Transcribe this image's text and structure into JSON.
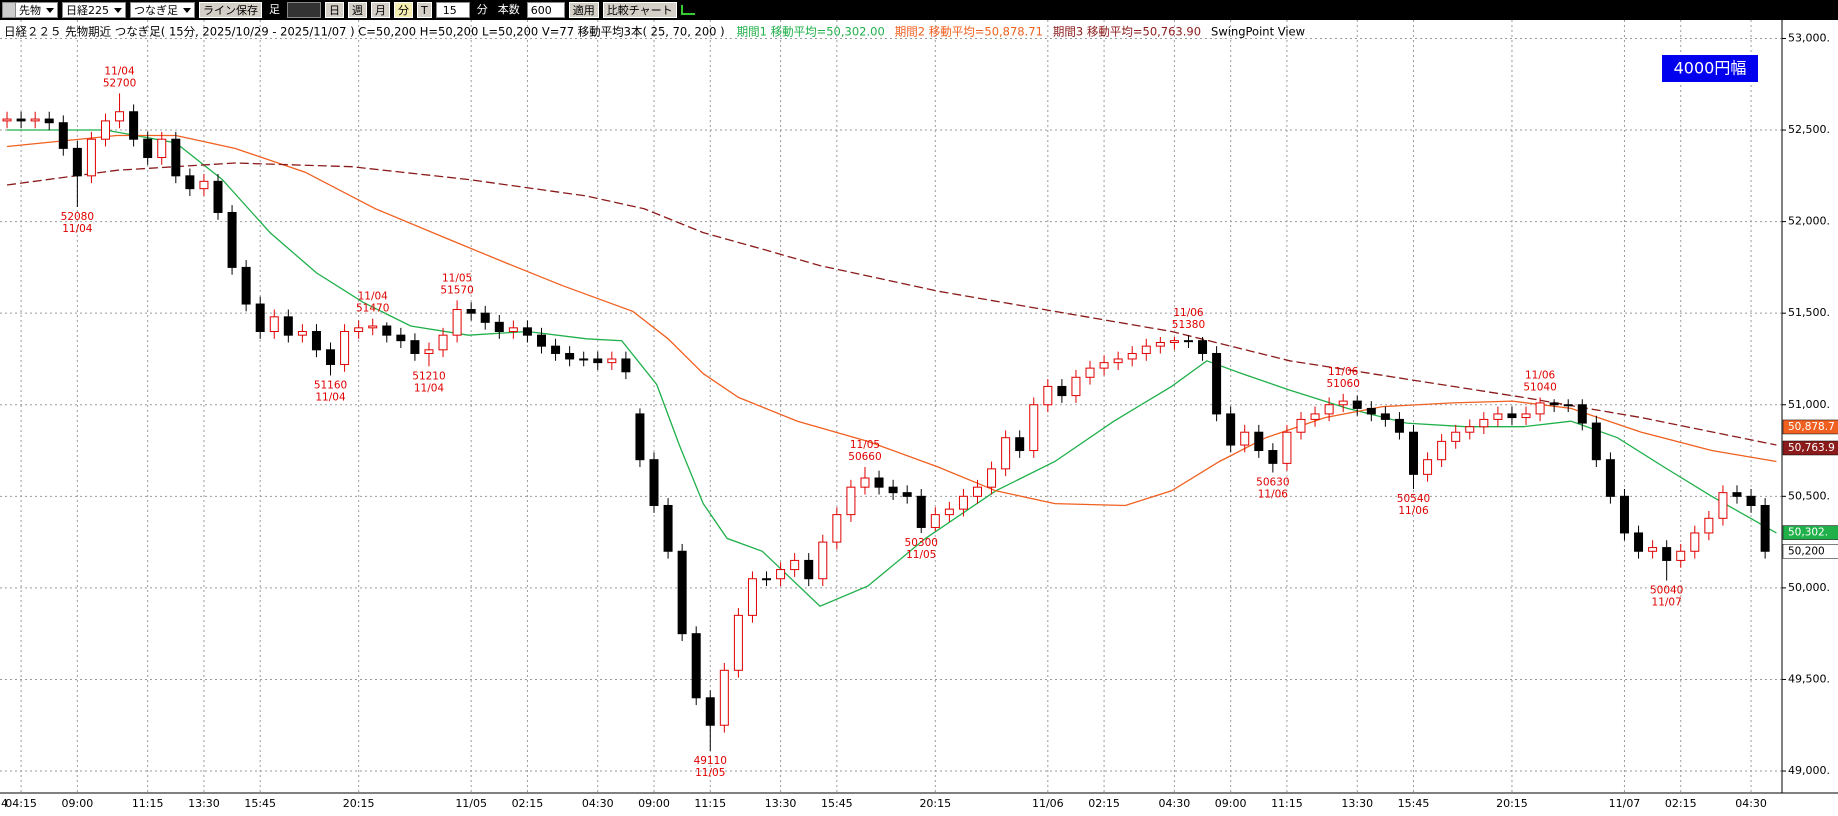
{
  "toolbar": [
    "先物",
    "日経225",
    "つなぎ足",
    "ライン保存",
    "足",
    "日",
    "週",
    "月",
    "分",
    "T",
    "15",
    "分",
    "本数",
    "600",
    "適用",
    "比較チャート"
  ],
  "chart_data": {
    "type": "candlestick",
    "info": "日経２２５ 先物期近 つなぎ足( 15分, 2025/10/29 - 2025/11/07 )  C=50,200 H=50,200 L=50,200 V=77  移動平均3本( 25, 70, 200 )",
    "view_label": "SwingPoint View",
    "annotation_box": "4000円幅",
    "clipped_label": "4",
    "xlim": [
      -0.5,
      126.2
    ],
    "xticks": [
      {
        "value": 1,
        "label": "04:15"
      },
      {
        "value": 5,
        "label": "09:00"
      },
      {
        "value": 10,
        "label": "11:15"
      },
      {
        "value": 14,
        "label": "13:30"
      },
      {
        "value": 18,
        "label": "15:45"
      },
      {
        "value": 25,
        "label": "20:15"
      },
      {
        "value": 33,
        "label": "11/05"
      },
      {
        "value": 37,
        "label": "02:15"
      },
      {
        "value": 42,
        "label": "04:30"
      },
      {
        "value": 46,
        "label": "09:00"
      },
      {
        "value": 50,
        "label": "11:15"
      },
      {
        "value": 55,
        "label": "13:30"
      },
      {
        "value": 59,
        "label": "15:45"
      },
      {
        "value": 66,
        "label": "20:15"
      },
      {
        "value": 74,
        "label": "11/06"
      },
      {
        "value": 78,
        "label": "02:15"
      },
      {
        "value": 83,
        "label": "04:30"
      },
      {
        "value": 87,
        "label": "09:00"
      },
      {
        "value": 91,
        "label": "11:15"
      },
      {
        "value": 96,
        "label": "13:30"
      },
      {
        "value": 100,
        "label": "15:45"
      },
      {
        "value": 107,
        "label": "20:15"
      },
      {
        "value": 115,
        "label": "11/07"
      },
      {
        "value": 119,
        "label": "02:15"
      },
      {
        "value": 124,
        "label": "04:30"
      }
    ],
    "ylim": [
      48880,
      53090
    ],
    "yticks": [
      {
        "value": 49000,
        "label": "49,000."
      },
      {
        "value": 49500,
        "label": "49,500."
      },
      {
        "value": 50000,
        "label": "50,000."
      },
      {
        "value": 50500,
        "label": "50,500."
      },
      {
        "value": 51000,
        "label": "51,000."
      },
      {
        "value": 51500,
        "label": "51,500."
      },
      {
        "value": 52000,
        "label": "52,000."
      },
      {
        "value": 52500,
        "label": "52,500."
      },
      {
        "value": 53000,
        "label": "53,000."
      }
    ],
    "grid": true,
    "up_color": "#e00000",
    "down_color": "#000000",
    "open": [
      52550,
      52560,
      52550,
      52560,
      52540,
      52400,
      52250,
      52450,
      52550,
      52600,
      52450,
      52350,
      52450,
      52250,
      52180,
      52220,
      52050,
      51750,
      51550,
      51400,
      51480,
      51380,
      51400,
      51300,
      51220,
      51400,
      51420,
      51430,
      51380,
      51350,
      51280,
      51300,
      51380,
      51520,
      51500,
      51450,
      51400,
      51420,
      51380,
      51320,
      51280,
      51250,
      51250,
      51230,
      51250,
      50950,
      50700,
      50450,
      50200,
      49750,
      49400,
      49250,
      49550,
      49850,
      50050,
      50050,
      50100,
      50150,
      50050,
      50250,
      50400,
      50550,
      50600,
      50550,
      50520,
      50500,
      50330,
      50400,
      50430,
      50500,
      50550,
      50650,
      50820,
      50750,
      51000,
      51100,
      51050,
      51150,
      51200,
      51230,
      51250,
      51280,
      51320,
      51340,
      51350,
      51350,
      51280,
      50950,
      50780,
      50850,
      50750,
      50680,
      50850,
      50920,
      50950,
      51000,
      51020,
      50980,
      50950,
      50920,
      50850,
      50620,
      50700,
      50800,
      50850,
      50880,
      50920,
      50950,
      50930,
      50950,
      51010,
      51000,
      51000,
      50900,
      50700,
      50500,
      50300,
      50200,
      50220,
      50150,
      50200,
      50300,
      50380,
      50520,
      50500,
      50450
    ],
    "high": [
      52600,
      52600,
      52600,
      52600,
      52580,
      52440,
      52490,
      52590,
      52700,
      52640,
      52490,
      52490,
      52490,
      52290,
      52260,
      52260,
      52090,
      51790,
      51590,
      51520,
      51520,
      51440,
      51440,
      51340,
      51440,
      51460,
      51470,
      51450,
      51420,
      51390,
      51340,
      51420,
      51570,
      51560,
      51540,
      51490,
      51460,
      51460,
      51420,
      51360,
      51320,
      51290,
      51290,
      51290,
      51290,
      50980,
      50740,
      50490,
      50240,
      49790,
      49440,
      49590,
      49890,
      50090,
      50090,
      50140,
      50190,
      50190,
      50290,
      50440,
      50590,
      50660,
      50640,
      50590,
      50560,
      50540,
      50440,
      50470,
      50540,
      50590,
      50690,
      50860,
      50860,
      51040,
      51140,
      51140,
      51190,
      51240,
      51270,
      51290,
      51320,
      51360,
      51370,
      51370,
      51380,
      51370,
      51320,
      50990,
      50890,
      50890,
      50790,
      50890,
      50960,
      50990,
      51040,
      51060,
      51050,
      51020,
      50990,
      50960,
      50890,
      50740,
      50840,
      50890,
      50920,
      50960,
      50990,
      50990,
      50990,
      51040,
      51030,
      51030,
      51030,
      50940,
      50740,
      50540,
      50340,
      50260,
      50260,
      50240,
      50340,
      50420,
      50560,
      50560,
      50540,
      50490
    ],
    "low": [
      52510,
      52510,
      52510,
      52500,
      52360,
      52080,
      52210,
      52410,
      52510,
      52410,
      52310,
      52310,
      52210,
      52140,
      52140,
      52010,
      51710,
      51510,
      51360,
      51360,
      51340,
      51340,
      51260,
      51160,
      51180,
      51360,
      51380,
      51340,
      51310,
      51240,
      51210,
      51260,
      51340,
      51460,
      51410,
      51360,
      51360,
      51340,
      51280,
      51240,
      51210,
      51210,
      51190,
      51190,
      51140,
      50660,
      50410,
      50160,
      49710,
      49360,
      49110,
      49210,
      49510,
      49810,
      50010,
      50010,
      50060,
      50010,
      50010,
      50210,
      50360,
      50510,
      50510,
      50480,
      50460,
      50300,
      50310,
      50360,
      50390,
      50460,
      50510,
      50610,
      50710,
      50710,
      50960,
      51010,
      51010,
      51110,
      51160,
      51190,
      51210,
      51240,
      51280,
      51300,
      51310,
      51240,
      50910,
      50740,
      50740,
      50710,
      50630,
      50640,
      50810,
      50880,
      50910,
      50960,
      50940,
      50910,
      50880,
      50810,
      50540,
      50580,
      50660,
      50760,
      50810,
      50840,
      50880,
      50890,
      50890,
      50910,
      50960,
      50960,
      50860,
      50660,
      50460,
      50260,
      50160,
      50160,
      50040,
      50110,
      50160,
      50260,
      50340,
      50460,
      50410,
      50160
    ],
    "close": [
      52560,
      52550,
      52560,
      52540,
      52400,
      52250,
      52450,
      52550,
      52600,
      52450,
      52350,
      52450,
      52250,
      52180,
      52220,
      52050,
      51750,
      51550,
      51400,
      51480,
      51380,
      51400,
      51300,
      51220,
      51400,
      51420,
      51430,
      51380,
      51350,
      51280,
      51300,
      51380,
      51520,
      51500,
      51450,
      51400,
      51420,
      51380,
      51320,
      51280,
      51250,
      51250,
      51230,
      51250,
      51180,
      50700,
      50450,
      50200,
      49750,
      49400,
      49250,
      49550,
      49850,
      50050,
      50050,
      50100,
      50150,
      50050,
      50250,
      50400,
      50550,
      50600,
      50550,
      50520,
      50500,
      50330,
      50400,
      50430,
      50500,
      50550,
      50650,
      50820,
      50750,
      51000,
      51100,
      51050,
      51150,
      51200,
      51230,
      51250,
      51280,
      51320,
      51340,
      51350,
      51350,
      51280,
      50950,
      50780,
      50850,
      50750,
      50680,
      50850,
      50920,
      50950,
      51000,
      51020,
      50980,
      50950,
      50920,
      50850,
      50620,
      50700,
      50800,
      50850,
      50880,
      50920,
      50950,
      50930,
      50950,
      51010,
      51000,
      51000,
      50900,
      50700,
      50500,
      50300,
      50200,
      50220,
      50150,
      50200,
      50300,
      50380,
      50520,
      50500,
      50450,
      50200
    ],
    "series": [
      {
        "name": "期間1 移動平均=50,302.00",
        "color": "#1fb04a",
        "dashed": false,
        "x": [
          0,
          7,
          12,
          15.3,
          18.7,
          22,
          25.3,
          28.7,
          32.8,
          37,
          41.2,
          43.7,
          46.2,
          47.8,
          49.5,
          51.2,
          53.7,
          57.8,
          61.2,
          65.3,
          70.3,
          74.5,
          78.7,
          82.8,
          85.3,
          87.8,
          91.2,
          95.3,
          99.5,
          103.7,
          107.8,
          111.2,
          114.5,
          117.8,
          121.2,
          125.8
        ],
        "values": [
          52500,
          52500,
          52430,
          52230,
          51940,
          51720,
          51560,
          51430,
          51380,
          51400,
          51360,
          51350,
          51110,
          50780,
          50460,
          50270,
          50200,
          49900,
          50010,
          50270,
          50530,
          50690,
          50910,
          51100,
          51240,
          51170,
          51080,
          50980,
          50900,
          50880,
          50880,
          50910,
          50820,
          50660,
          50500,
          50300
        ]
      },
      {
        "name": "期間2 移動平均=50,878.71",
        "color": "#f06020",
        "dashed": false,
        "x": [
          0,
          7.8,
          12,
          16.2,
          21.2,
          26.2,
          31.2,
          35.3,
          39.5,
          44.5,
          47,
          49.5,
          52,
          56.2,
          61.2,
          66.2,
          70.3,
          74.5,
          79.5,
          82.8,
          86.2,
          89.5,
          93.7,
          97.8,
          102.8,
          107,
          111.2,
          116.2,
          121.2,
          125.8
        ],
        "values": [
          52410,
          52470,
          52470,
          52400,
          52270,
          52070,
          51910,
          51780,
          51650,
          51510,
          51360,
          51170,
          51040,
          50910,
          50800,
          50660,
          50530,
          50460,
          50450,
          50530,
          50690,
          50820,
          50930,
          50990,
          51010,
          51020,
          50980,
          50850,
          50750,
          50690
        ]
      },
      {
        "name": "期間3 移動平均=50,763.90",
        "color": "#8b1a1a",
        "dashed": true,
        "x": [
          0,
          7.8,
          16.2,
          24.5,
          32.8,
          41.2,
          45.3,
          49.5,
          53.7,
          57.8,
          66.2,
          74.5,
          82.8,
          91.2,
          99.5,
          107.8,
          116.2,
          125.8
        ],
        "values": [
          52200,
          52280,
          52320,
          52300,
          52230,
          52140,
          52070,
          51940,
          51850,
          51760,
          51620,
          51510,
          51400,
          51240,
          51140,
          51040,
          50930,
          50780
        ]
      }
    ],
    "price_tags": [
      {
        "value": 50878.71,
        "label": "50,878.7",
        "color": "#f06020",
        "text_color": "#ffffff"
      },
      {
        "value": 50763.9,
        "label": "50,763.9",
        "color": "#8b1a1a",
        "text_color": "#ffffff"
      },
      {
        "value": 50302,
        "label": "50,302.",
        "color": "#1fb04a",
        "text_color": "#ffffff"
      },
      {
        "value": 50200,
        "label": "50,200",
        "color": "#ffffff",
        "text_color": "#000000"
      }
    ],
    "swing_color": "#e00000",
    "swing_points": [
      {
        "index": 5,
        "price": 52080,
        "date": "11/04",
        "kind": "low"
      },
      {
        "index": 8,
        "price": 52700,
        "date": "11/04",
        "kind": "high"
      },
      {
        "index": 23,
        "price": 51160,
        "date": "11/04",
        "kind": "low"
      },
      {
        "index": 26,
        "price": 51470,
        "date": "11/04",
        "kind": "high"
      },
      {
        "index": 30,
        "price": 51210,
        "date": "11/04",
        "kind": "low"
      },
      {
        "index": 32,
        "price": 51570,
        "date": "11/05",
        "kind": "high"
      },
      {
        "index": 50,
        "price": 49110,
        "date": "11/05",
        "kind": "low"
      },
      {
        "index": 61,
        "price": 50660,
        "date": "11/05",
        "kind": "high"
      },
      {
        "index": 65,
        "price": 50300,
        "date": "11/05",
        "kind": "low"
      },
      {
        "index": 84,
        "price": 51380,
        "date": "11/06",
        "kind": "high"
      },
      {
        "index": 90,
        "price": 50630,
        "date": "11/06",
        "kind": "low"
      },
      {
        "index": 95,
        "price": 51060,
        "date": "11/06",
        "kind": "high"
      },
      {
        "index": 100,
        "price": 50540,
        "date": "11/06",
        "kind": "low"
      },
      {
        "index": 109,
        "price": 51040,
        "date": "11/06",
        "kind": "high"
      },
      {
        "index": 118,
        "price": 50040,
        "date": "11/07",
        "kind": "low"
      }
    ]
  }
}
